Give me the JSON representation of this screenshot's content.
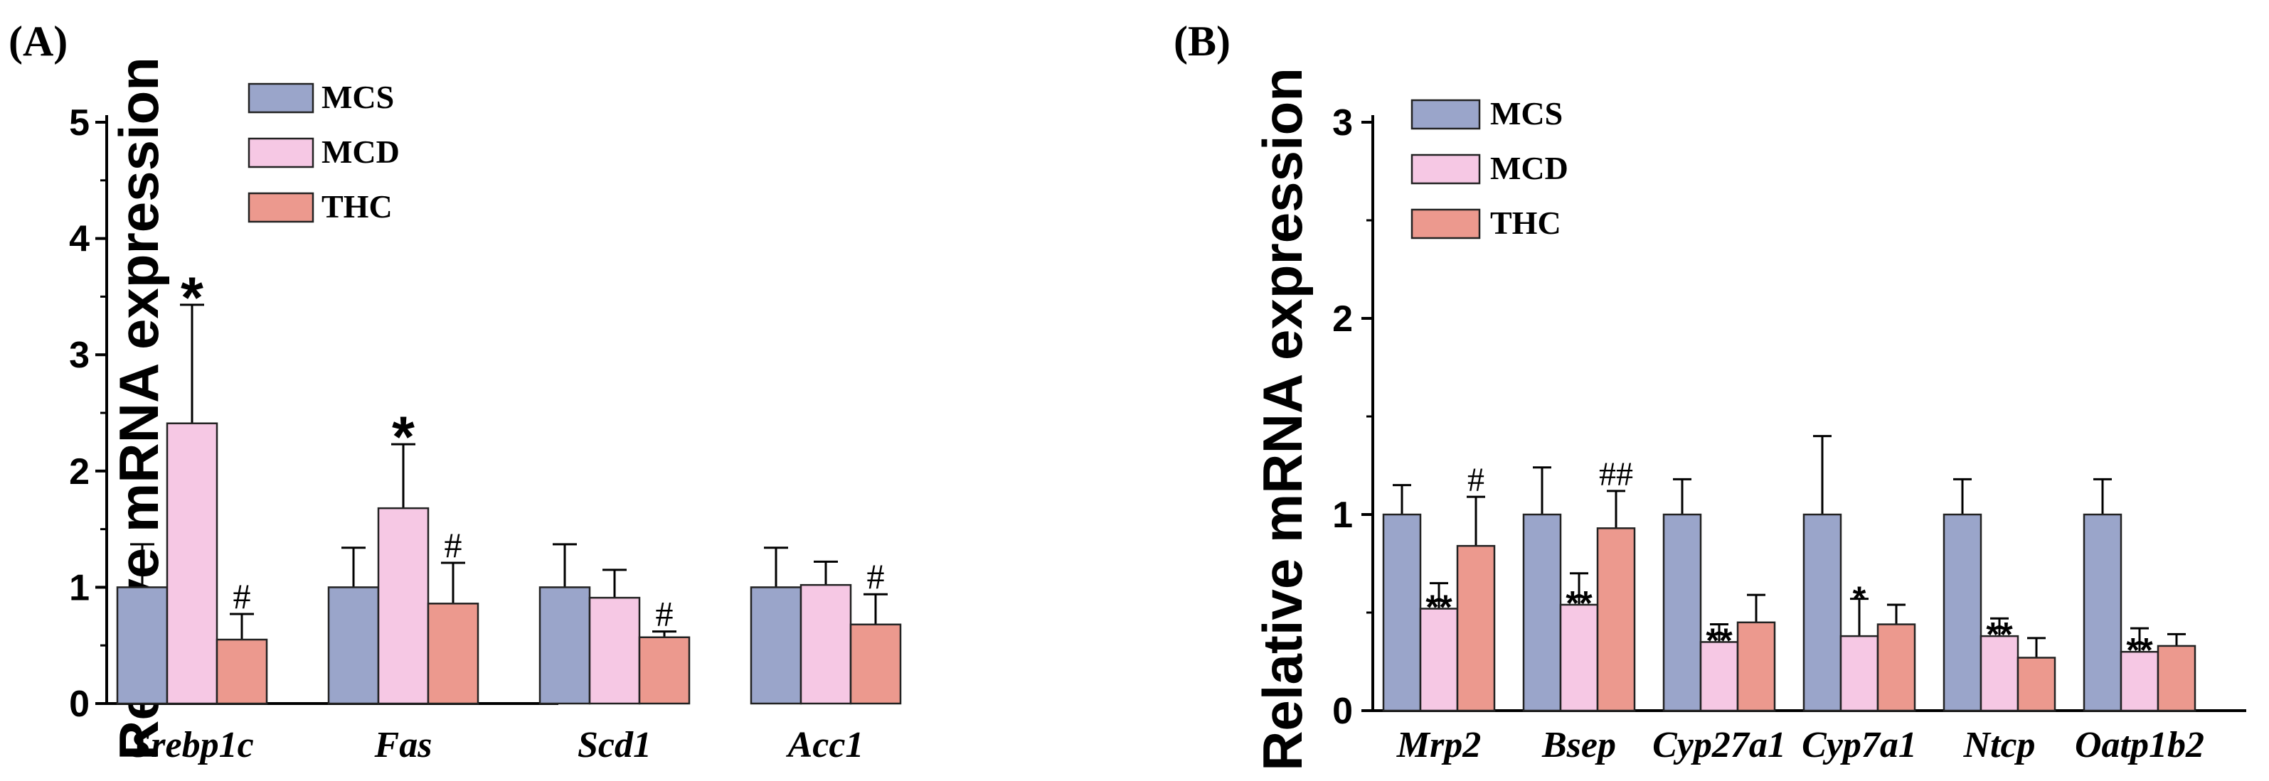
{
  "colors": {
    "MCS": "#9aa5ca",
    "MCD": "#f6c8e4",
    "THC": "#ec998e"
  },
  "chart_data": [
    {
      "id": "A",
      "panel_label": "(A)",
      "type": "bar",
      "ylabel": "Relative mRNA expression",
      "xlabel": "",
      "ylim": [
        0,
        5
      ],
      "yticks": [
        "0",
        "1",
        "2",
        "3",
        "4",
        "5"
      ],
      "legend": [
        "MCS",
        "MCD",
        "THC"
      ],
      "categories": [
        "Srebp1c",
        "Fas",
        "Scd1",
        "Acc1"
      ],
      "series": [
        {
          "name": "MCS",
          "values": [
            1.0,
            1.0,
            1.0,
            1.0
          ],
          "errors": [
            0.37,
            0.34,
            0.37,
            0.34
          ]
        },
        {
          "name": "MCD",
          "values": [
            2.41,
            1.68,
            0.91,
            1.02
          ],
          "errors": [
            1.02,
            0.55,
            0.24,
            0.2
          ]
        },
        {
          "name": "THC",
          "values": [
            0.55,
            0.86,
            0.57,
            0.68
          ],
          "errors": [
            0.22,
            0.35,
            0.05,
            0.26
          ]
        }
      ],
      "annotations": [
        {
          "category": 0,
          "series": 1,
          "text": "*"
        },
        {
          "category": 0,
          "series": 2,
          "text": "#"
        },
        {
          "category": 1,
          "series": 1,
          "text": "*"
        },
        {
          "category": 1,
          "series": 2,
          "text": "#"
        },
        {
          "category": 2,
          "series": 2,
          "text": "#"
        },
        {
          "category": 3,
          "series": 2,
          "text": "#"
        }
      ]
    },
    {
      "id": "B",
      "panel_label": "(B)",
      "type": "bar",
      "ylabel": "Relative mRNA expression",
      "xlabel": "",
      "ylim": [
        0,
        3
      ],
      "yticks": [
        "0",
        "1",
        "2",
        "3"
      ],
      "legend": [
        "MCS",
        "MCD",
        "THC"
      ],
      "categories": [
        "Mrp2",
        "Bsep",
        "Cyp27a1",
        "Cyp7a1",
        "Ntcp",
        "Oatp1b2"
      ],
      "series": [
        {
          "name": "MCS",
          "values": [
            1.0,
            1.0,
            1.0,
            1.0,
            1.0,
            1.0
          ],
          "errors": [
            0.15,
            0.24,
            0.18,
            0.4,
            0.18,
            0.18
          ]
        },
        {
          "name": "MCD",
          "values": [
            0.52,
            0.54,
            0.35,
            0.38,
            0.38,
            0.3
          ],
          "errors": [
            0.13,
            0.16,
            0.09,
            0.19,
            0.09,
            0.12
          ]
        },
        {
          "name": "THC",
          "values": [
            0.84,
            0.93,
            0.45,
            0.44,
            0.27,
            0.33
          ],
          "errors": [
            0.25,
            0.19,
            0.14,
            0.1,
            0.1,
            0.06
          ]
        }
      ],
      "annotations": [
        {
          "category": 0,
          "series": 1,
          "text": "**"
        },
        {
          "category": 0,
          "series": 2,
          "text": "#"
        },
        {
          "category": 1,
          "series": 1,
          "text": "**"
        },
        {
          "category": 1,
          "series": 2,
          "text": "##"
        },
        {
          "category": 2,
          "series": 1,
          "text": "**"
        },
        {
          "category": 3,
          "series": 1,
          "text": "*"
        },
        {
          "category": 4,
          "series": 1,
          "text": "**"
        },
        {
          "category": 5,
          "series": 1,
          "text": "**"
        }
      ]
    }
  ]
}
